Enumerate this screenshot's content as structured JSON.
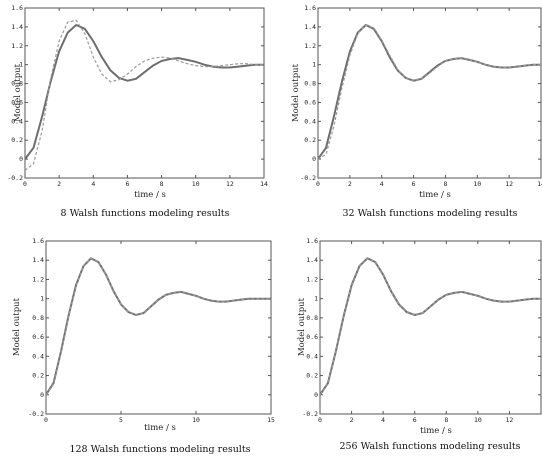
{
  "chart_data": [
    {
      "type": "line",
      "xlabel": "time / s",
      "ylabel": "Model output",
      "caption": "8 Walsh functions modeling results",
      "xlim": [
        0,
        14
      ],
      "ylim": [
        -0.2,
        1.6
      ],
      "xticks": [
        "0",
        "2",
        "4",
        "6",
        "8",
        "10",
        "12",
        "14"
      ],
      "yticks": [
        "-0.2",
        "0",
        "0.2",
        "0.4",
        "0.6",
        "0.8",
        "1",
        "1.2",
        "1.4",
        "1.6"
      ],
      "series": [
        {
          "style": "solid",
          "x": [
            0,
            0.5,
            1,
            1.5,
            2,
            2.5,
            3,
            3.5,
            4,
            4.5,
            5,
            5.5,
            6,
            6.5,
            7,
            7.5,
            8,
            8.5,
            9,
            9.5,
            10,
            10.5,
            11,
            11.5,
            12,
            12.5,
            13,
            13.5,
            14
          ],
          "y": [
            0,
            0.12,
            0.45,
            0.82,
            1.14,
            1.34,
            1.42,
            1.38,
            1.25,
            1.08,
            0.94,
            0.86,
            0.83,
            0.85,
            0.92,
            0.99,
            1.04,
            1.06,
            1.07,
            1.05,
            1.03,
            1.0,
            0.98,
            0.97,
            0.97,
            0.98,
            0.99,
            1.0,
            1.0
          ]
        },
        {
          "style": "dashed",
          "x": [
            0,
            0.5,
            1,
            1.5,
            2,
            2.5,
            3,
            3.5,
            4,
            4.5,
            5,
            5.5,
            6,
            6.5,
            7,
            7.5,
            8,
            8.5,
            9,
            9.5,
            10,
            10.5,
            11,
            11.5,
            12,
            12.5,
            13,
            13.5,
            14
          ],
          "y": [
            -0.12,
            -0.05,
            0.3,
            0.85,
            1.25,
            1.45,
            1.47,
            1.33,
            1.08,
            0.9,
            0.82,
            0.84,
            0.9,
            0.98,
            1.04,
            1.07,
            1.08,
            1.07,
            1.04,
            1.01,
            0.99,
            0.98,
            0.98,
            0.99,
            1.0,
            1.01,
            1.01,
            1.0,
            1.0
          ]
        }
      ]
    },
    {
      "type": "line",
      "xlabel": "time / s",
      "ylabel": "Model output",
      "caption": "32 Walsh functions modeling results",
      "xlim": [
        0,
        14
      ],
      "ylim": [
        -0.2,
        1.6
      ],
      "xticks": [
        "0",
        "2",
        "4",
        "6",
        "8",
        "10",
        "12",
        "14"
      ],
      "yticks": [
        "-0.2",
        "0",
        "0.2",
        "0.4",
        "0.6",
        "0.8",
        "1",
        "1.2",
        "1.4",
        "1.6"
      ],
      "series": [
        {
          "style": "solid",
          "x": [
            0,
            0.5,
            1,
            1.5,
            2,
            2.5,
            3,
            3.5,
            4,
            4.5,
            5,
            5.5,
            6,
            6.5,
            7,
            7.5,
            8,
            8.5,
            9,
            9.5,
            10,
            10.5,
            11,
            11.5,
            12,
            12.5,
            13,
            13.5,
            14
          ],
          "y": [
            0,
            0.12,
            0.45,
            0.82,
            1.14,
            1.34,
            1.42,
            1.38,
            1.25,
            1.08,
            0.94,
            0.86,
            0.83,
            0.85,
            0.92,
            0.99,
            1.04,
            1.06,
            1.07,
            1.05,
            1.03,
            1.0,
            0.98,
            0.97,
            0.97,
            0.98,
            0.99,
            1.0,
            1.0
          ]
        },
        {
          "style": "dashed",
          "x": [
            0,
            0.5,
            1,
            1.5,
            2,
            2.5,
            3,
            3.5,
            4,
            4.5,
            5,
            5.5,
            6,
            6.5,
            7,
            7.5,
            8,
            8.5,
            9,
            9.5,
            10,
            10.5,
            11,
            11.5,
            12,
            12.5,
            13,
            13.5,
            14
          ],
          "y": [
            0,
            0.05,
            0.35,
            0.75,
            1.1,
            1.33,
            1.42,
            1.39,
            1.26,
            1.1,
            0.95,
            0.86,
            0.83,
            0.85,
            0.91,
            0.98,
            1.04,
            1.06,
            1.07,
            1.05,
            1.03,
            1.0,
            0.98,
            0.97,
            0.97,
            0.98,
            0.99,
            1.0,
            1.0
          ]
        }
      ]
    },
    {
      "type": "line",
      "xlabel": "time / s",
      "ylabel": "Model output",
      "caption": "128 Walsh functions modeling results",
      "xlim": [
        0,
        15
      ],
      "ylim": [
        -0.2,
        1.6
      ],
      "xticks": [
        "0",
        "5",
        "10",
        "15"
      ],
      "yticks": [
        "-0.2",
        "0",
        "0.2",
        "0.4",
        "0.6",
        "0.8",
        "1",
        "1.2",
        "1.4",
        "1.6"
      ],
      "series": [
        {
          "style": "solid",
          "x": [
            0,
            0.5,
            1,
            1.5,
            2,
            2.5,
            3,
            3.5,
            4,
            4.5,
            5,
            5.5,
            6,
            6.5,
            7,
            7.5,
            8,
            8.5,
            9,
            9.5,
            10,
            10.5,
            11,
            11.5,
            12,
            12.5,
            13,
            13.5,
            14,
            14.5,
            15
          ],
          "y": [
            0,
            0.12,
            0.45,
            0.82,
            1.14,
            1.34,
            1.42,
            1.38,
            1.25,
            1.08,
            0.94,
            0.86,
            0.83,
            0.85,
            0.92,
            0.99,
            1.04,
            1.06,
            1.07,
            1.05,
            1.03,
            1.0,
            0.98,
            0.97,
            0.97,
            0.98,
            0.99,
            1.0,
            1.0,
            1.0,
            1.0
          ]
        },
        {
          "style": "dashed",
          "x": [
            0,
            0.5,
            1,
            1.5,
            2,
            2.5,
            3,
            3.5,
            4,
            4.5,
            5,
            5.5,
            6,
            6.5,
            7,
            7.5,
            8,
            8.5,
            9,
            9.5,
            10,
            10.5,
            11,
            11.5,
            12,
            12.5,
            13,
            13.5,
            14,
            14.5,
            15
          ],
          "y": [
            0,
            0.11,
            0.44,
            0.81,
            1.13,
            1.34,
            1.42,
            1.38,
            1.25,
            1.08,
            0.94,
            0.86,
            0.83,
            0.85,
            0.92,
            0.99,
            1.04,
            1.06,
            1.07,
            1.05,
            1.03,
            1.0,
            0.98,
            0.97,
            0.97,
            0.98,
            0.99,
            1.0,
            1.0,
            1.0,
            1.0
          ]
        }
      ]
    },
    {
      "type": "line",
      "xlabel": "time / s",
      "ylabel": "Model output",
      "caption": "256 Walsh functions modeling results",
      "xlim": [
        0,
        14
      ],
      "ylim": [
        -0.2,
        1.6
      ],
      "xticks": [
        "0",
        "2",
        "4",
        "6",
        "8",
        "10",
        "12"
      ],
      "yticks": [
        "-0.2",
        "0",
        "0.2",
        "0.4",
        "0.6",
        "0.8",
        "1",
        "1.2",
        "1.4",
        "1.6"
      ],
      "series": [
        {
          "style": "solid",
          "x": [
            0,
            0.5,
            1,
            1.5,
            2,
            2.5,
            3,
            3.5,
            4,
            4.5,
            5,
            5.5,
            6,
            6.5,
            7,
            7.5,
            8,
            8.5,
            9,
            9.5,
            10,
            10.5,
            11,
            11.5,
            12,
            12.5,
            13,
            13.5,
            14
          ],
          "y": [
            0,
            0.12,
            0.45,
            0.82,
            1.14,
            1.34,
            1.42,
            1.38,
            1.25,
            1.08,
            0.94,
            0.86,
            0.83,
            0.85,
            0.92,
            0.99,
            1.04,
            1.06,
            1.07,
            1.05,
            1.03,
            1.0,
            0.98,
            0.97,
            0.97,
            0.98,
            0.99,
            1.0,
            1.0
          ]
        },
        {
          "style": "dashed",
          "x": [
            0,
            0.5,
            1,
            1.5,
            2,
            2.5,
            3,
            3.5,
            4,
            4.5,
            5,
            5.5,
            6,
            6.5,
            7,
            7.5,
            8,
            8.5,
            9,
            9.5,
            10,
            10.5,
            11,
            11.5,
            12,
            12.5,
            13,
            13.5,
            14
          ],
          "y": [
            0,
            0.12,
            0.45,
            0.82,
            1.14,
            1.34,
            1.42,
            1.38,
            1.25,
            1.08,
            0.94,
            0.86,
            0.83,
            0.85,
            0.92,
            0.99,
            1.04,
            1.06,
            1.07,
            1.05,
            1.03,
            1.0,
            0.98,
            0.97,
            0.97,
            0.98,
            0.99,
            1.0,
            1.0
          ]
        }
      ]
    }
  ]
}
